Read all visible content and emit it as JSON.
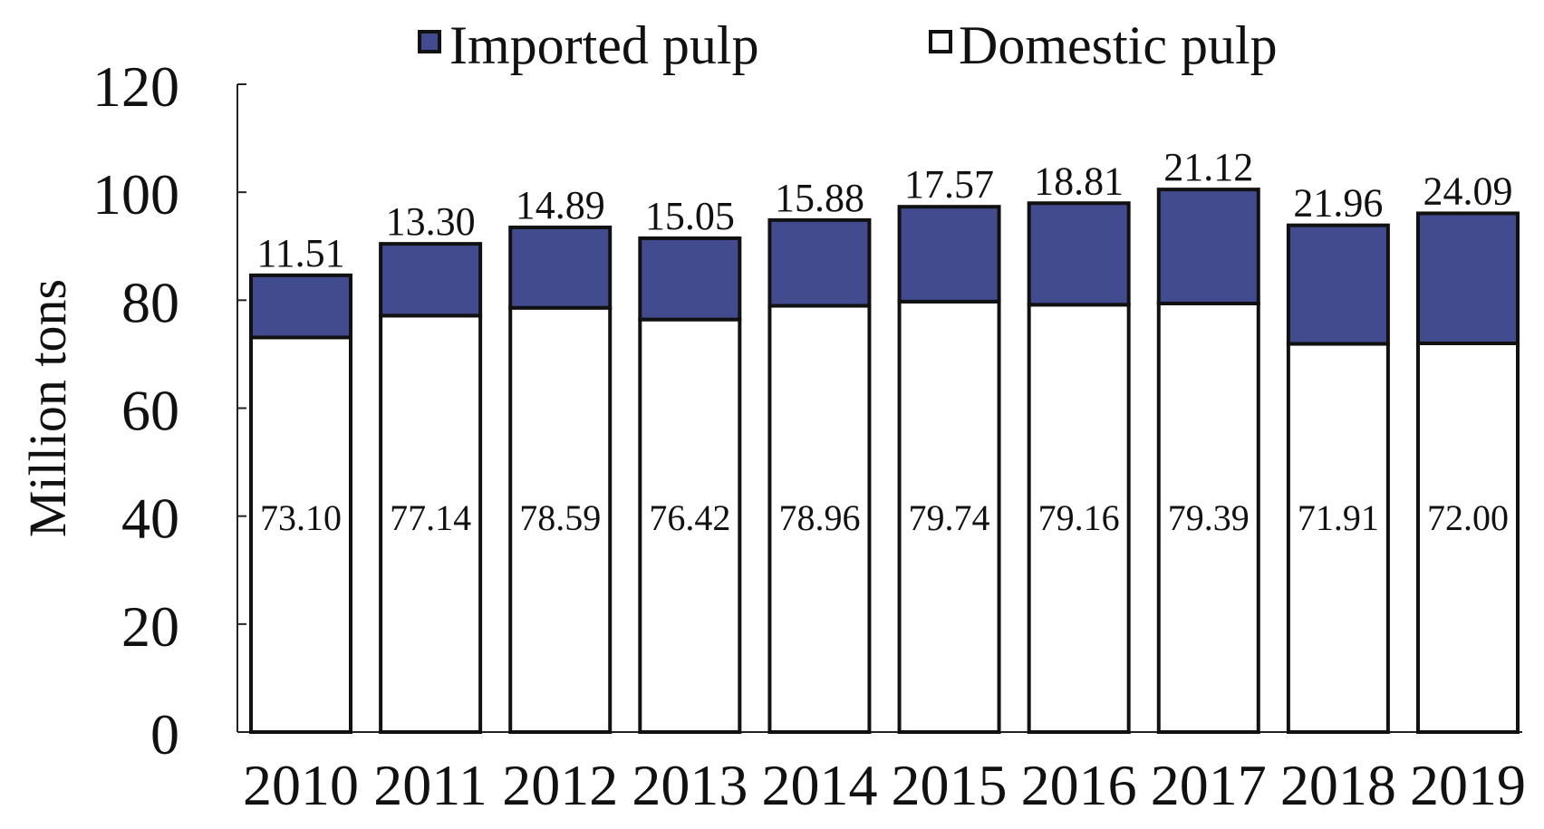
{
  "chart_data": {
    "type": "bar",
    "stacked": true,
    "title": "",
    "xlabel": "",
    "ylabel": "Million tons",
    "ylim": [
      0,
      120
    ],
    "yticks": [
      0,
      20,
      40,
      60,
      80,
      100,
      120
    ],
    "grid": false,
    "legend_position": "top",
    "categories": [
      "2010",
      "2011",
      "2012",
      "2013",
      "2014",
      "2015",
      "2016",
      "2017",
      "2018",
      "2019"
    ],
    "series": [
      {
        "name": "Domestic pulp",
        "color": "#ffffff",
        "values": [
          73.1,
          77.14,
          78.59,
          76.42,
          78.96,
          79.74,
          79.16,
          79.39,
          71.91,
          72.0
        ],
        "labels": [
          "73.10",
          "77.14",
          "78.59",
          "76.42",
          "78.96",
          "79.74",
          "79.16",
          "79.39",
          "71.91",
          "72.00"
        ]
      },
      {
        "name": "Imported pulp",
        "color": "#414B8E",
        "values": [
          11.51,
          13.3,
          14.89,
          15.05,
          15.88,
          17.57,
          18.81,
          21.12,
          21.96,
          24.09
        ],
        "labels": [
          "11.51",
          "13.30",
          "14.89",
          "15.05",
          "15.88",
          "17.57",
          "18.81",
          "21.12",
          "21.96",
          "24.09"
        ]
      }
    ],
    "legend_order": [
      "Imported pulp",
      "Domestic pulp"
    ]
  }
}
